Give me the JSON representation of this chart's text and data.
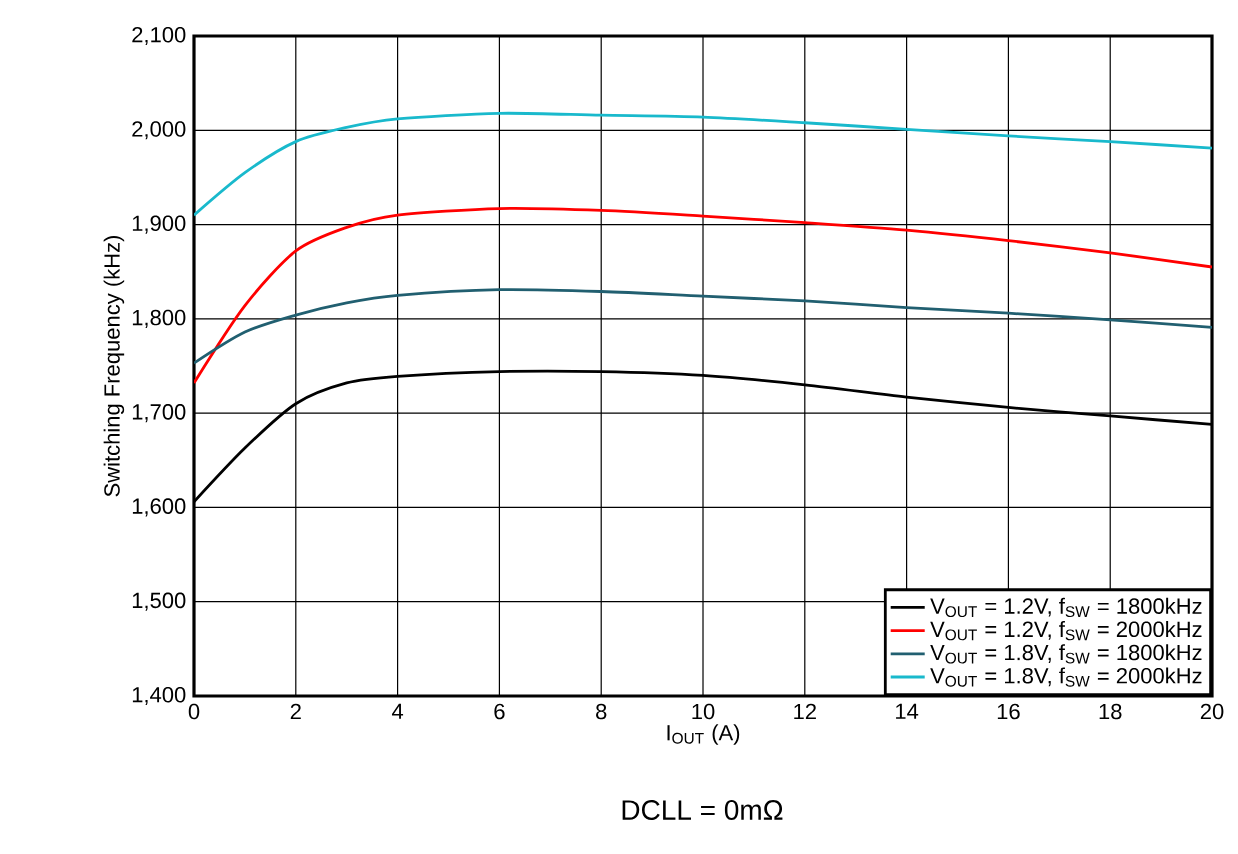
{
  "chart_data": {
    "type": "line",
    "xlabel": "I$_{OUT}$ (A)",
    "ylabel": "Switching Frequency (kHz)",
    "annotations": [
      "DCLL = 0mΩ"
    ],
    "x": [
      0,
      1,
      2,
      3,
      4,
      6,
      8,
      10,
      12,
      14,
      16,
      18,
      20
    ],
    "series": [
      {
        "name": "V$_{OUT}$ = 1.2V, f$_{SW}$ = 1800kHz",
        "color": "#000000",
        "values": [
          1606,
          1663,
          1710,
          1732,
          1739,
          1744,
          1744,
          1740,
          1730,
          1717,
          1706,
          1697,
          1688
        ]
      },
      {
        "name": "V$_{OUT}$ = 1.2V, f$_{SW}$ = 2000kHz",
        "color": "#ff0000",
        "values": [
          1732,
          1814,
          1872,
          1897,
          1910,
          1917,
          1915,
          1909,
          1902,
          1894,
          1883,
          1870,
          1855
        ]
      },
      {
        "name": "V$_{OUT}$ = 1.8V, f$_{SW}$ = 1800kHz",
        "color": "#215f70",
        "values": [
          1753,
          1786,
          1804,
          1817,
          1825,
          1831,
          1829,
          1824,
          1819,
          1812,
          1806,
          1799,
          1791
        ]
      },
      {
        "name": "V$_{OUT}$ = 1.8V, f$_{SW}$ = 2000kHz",
        "color": "#19b9cc",
        "values": [
          1910,
          1955,
          1988,
          2003,
          2012,
          2018,
          2016,
          2014,
          2008,
          2001,
          1994,
          1988,
          1981
        ]
      }
    ],
    "xlim": [
      0,
      20
    ],
    "ylim": [
      1400,
      2100
    ],
    "xticks": [
      0,
      2,
      4,
      6,
      8,
      10,
      12,
      14,
      16,
      18,
      20
    ],
    "yticks": [
      {
        "value": 1400,
        "label": "1,400"
      },
      {
        "value": 1500,
        "label": "1,500"
      },
      {
        "value": 1600,
        "label": "1,600"
      },
      {
        "value": 1700,
        "label": "1,700"
      },
      {
        "value": 1800,
        "label": "1,800"
      },
      {
        "value": 1900,
        "label": "1,900"
      },
      {
        "value": 2000,
        "label": "2,000"
      },
      {
        "value": 2100,
        "label": "2,100"
      }
    ],
    "grid": true,
    "legend": "bottom right",
    "line_style": "solid",
    "marker": "none"
  }
}
